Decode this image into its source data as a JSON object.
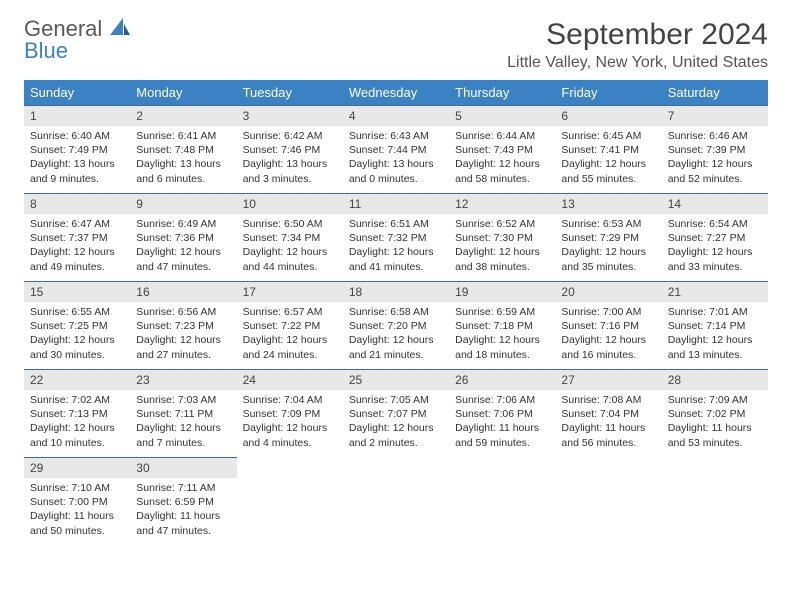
{
  "logo": {
    "line1": "General",
    "line2": "Blue"
  },
  "title": "September 2024",
  "location": "Little Valley, New York, United States",
  "colors": {
    "header_bg": "#3b82c4",
    "header_text": "#ffffff",
    "daynum_bg": "#e8e8e8",
    "border": "#3b6ea0",
    "logo_gray": "#5a5a5a",
    "logo_blue": "#3b82c4"
  },
  "day_headers": [
    "Sunday",
    "Monday",
    "Tuesday",
    "Wednesday",
    "Thursday",
    "Friday",
    "Saturday"
  ],
  "weeks": [
    [
      {
        "n": "1",
        "sunrise": "Sunrise: 6:40 AM",
        "sunset": "Sunset: 7:49 PM",
        "day": "Daylight: 13 hours and 9 minutes."
      },
      {
        "n": "2",
        "sunrise": "Sunrise: 6:41 AM",
        "sunset": "Sunset: 7:48 PM",
        "day": "Daylight: 13 hours and 6 minutes."
      },
      {
        "n": "3",
        "sunrise": "Sunrise: 6:42 AM",
        "sunset": "Sunset: 7:46 PM",
        "day": "Daylight: 13 hours and 3 minutes."
      },
      {
        "n": "4",
        "sunrise": "Sunrise: 6:43 AM",
        "sunset": "Sunset: 7:44 PM",
        "day": "Daylight: 13 hours and 0 minutes."
      },
      {
        "n": "5",
        "sunrise": "Sunrise: 6:44 AM",
        "sunset": "Sunset: 7:43 PM",
        "day": "Daylight: 12 hours and 58 minutes."
      },
      {
        "n": "6",
        "sunrise": "Sunrise: 6:45 AM",
        "sunset": "Sunset: 7:41 PM",
        "day": "Daylight: 12 hours and 55 minutes."
      },
      {
        "n": "7",
        "sunrise": "Sunrise: 6:46 AM",
        "sunset": "Sunset: 7:39 PM",
        "day": "Daylight: 12 hours and 52 minutes."
      }
    ],
    [
      {
        "n": "8",
        "sunrise": "Sunrise: 6:47 AM",
        "sunset": "Sunset: 7:37 PM",
        "day": "Daylight: 12 hours and 49 minutes."
      },
      {
        "n": "9",
        "sunrise": "Sunrise: 6:49 AM",
        "sunset": "Sunset: 7:36 PM",
        "day": "Daylight: 12 hours and 47 minutes."
      },
      {
        "n": "10",
        "sunrise": "Sunrise: 6:50 AM",
        "sunset": "Sunset: 7:34 PM",
        "day": "Daylight: 12 hours and 44 minutes."
      },
      {
        "n": "11",
        "sunrise": "Sunrise: 6:51 AM",
        "sunset": "Sunset: 7:32 PM",
        "day": "Daylight: 12 hours and 41 minutes."
      },
      {
        "n": "12",
        "sunrise": "Sunrise: 6:52 AM",
        "sunset": "Sunset: 7:30 PM",
        "day": "Daylight: 12 hours and 38 minutes."
      },
      {
        "n": "13",
        "sunrise": "Sunrise: 6:53 AM",
        "sunset": "Sunset: 7:29 PM",
        "day": "Daylight: 12 hours and 35 minutes."
      },
      {
        "n": "14",
        "sunrise": "Sunrise: 6:54 AM",
        "sunset": "Sunset: 7:27 PM",
        "day": "Daylight: 12 hours and 33 minutes."
      }
    ],
    [
      {
        "n": "15",
        "sunrise": "Sunrise: 6:55 AM",
        "sunset": "Sunset: 7:25 PM",
        "day": "Daylight: 12 hours and 30 minutes."
      },
      {
        "n": "16",
        "sunrise": "Sunrise: 6:56 AM",
        "sunset": "Sunset: 7:23 PM",
        "day": "Daylight: 12 hours and 27 minutes."
      },
      {
        "n": "17",
        "sunrise": "Sunrise: 6:57 AM",
        "sunset": "Sunset: 7:22 PM",
        "day": "Daylight: 12 hours and 24 minutes."
      },
      {
        "n": "18",
        "sunrise": "Sunrise: 6:58 AM",
        "sunset": "Sunset: 7:20 PM",
        "day": "Daylight: 12 hours and 21 minutes."
      },
      {
        "n": "19",
        "sunrise": "Sunrise: 6:59 AM",
        "sunset": "Sunset: 7:18 PM",
        "day": "Daylight: 12 hours and 18 minutes."
      },
      {
        "n": "20",
        "sunrise": "Sunrise: 7:00 AM",
        "sunset": "Sunset: 7:16 PM",
        "day": "Daylight: 12 hours and 16 minutes."
      },
      {
        "n": "21",
        "sunrise": "Sunrise: 7:01 AM",
        "sunset": "Sunset: 7:14 PM",
        "day": "Daylight: 12 hours and 13 minutes."
      }
    ],
    [
      {
        "n": "22",
        "sunrise": "Sunrise: 7:02 AM",
        "sunset": "Sunset: 7:13 PM",
        "day": "Daylight: 12 hours and 10 minutes."
      },
      {
        "n": "23",
        "sunrise": "Sunrise: 7:03 AM",
        "sunset": "Sunset: 7:11 PM",
        "day": "Daylight: 12 hours and 7 minutes."
      },
      {
        "n": "24",
        "sunrise": "Sunrise: 7:04 AM",
        "sunset": "Sunset: 7:09 PM",
        "day": "Daylight: 12 hours and 4 minutes."
      },
      {
        "n": "25",
        "sunrise": "Sunrise: 7:05 AM",
        "sunset": "Sunset: 7:07 PM",
        "day": "Daylight: 12 hours and 2 minutes."
      },
      {
        "n": "26",
        "sunrise": "Sunrise: 7:06 AM",
        "sunset": "Sunset: 7:06 PM",
        "day": "Daylight: 11 hours and 59 minutes."
      },
      {
        "n": "27",
        "sunrise": "Sunrise: 7:08 AM",
        "sunset": "Sunset: 7:04 PM",
        "day": "Daylight: 11 hours and 56 minutes."
      },
      {
        "n": "28",
        "sunrise": "Sunrise: 7:09 AM",
        "sunset": "Sunset: 7:02 PM",
        "day": "Daylight: 11 hours and 53 minutes."
      }
    ],
    [
      {
        "n": "29",
        "sunrise": "Sunrise: 7:10 AM",
        "sunset": "Sunset: 7:00 PM",
        "day": "Daylight: 11 hours and 50 minutes."
      },
      {
        "n": "30",
        "sunrise": "Sunrise: 7:11 AM",
        "sunset": "Sunset: 6:59 PM",
        "day": "Daylight: 11 hours and 47 minutes."
      },
      null,
      null,
      null,
      null,
      null
    ]
  ]
}
